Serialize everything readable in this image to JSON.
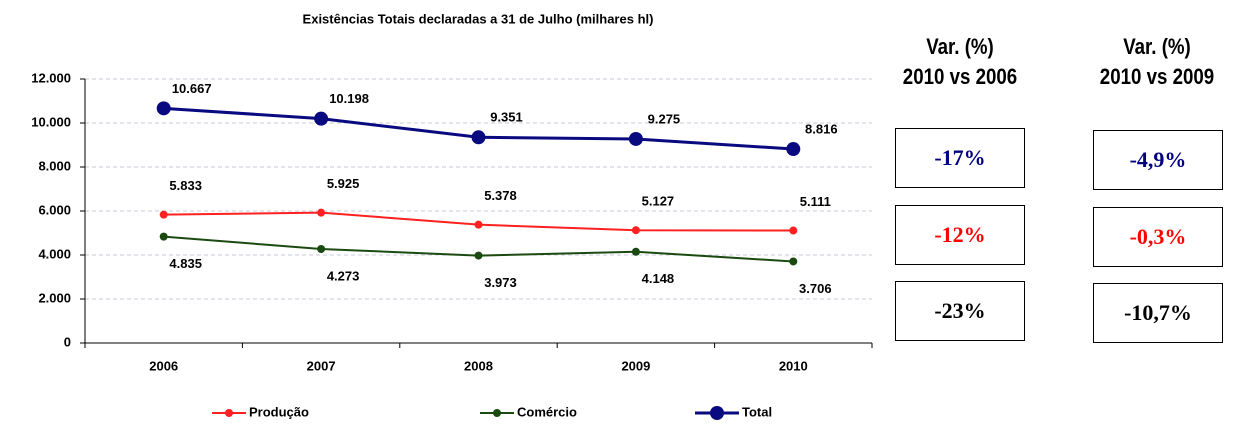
{
  "chart_data": {
    "type": "line",
    "title": "Existências Totais declaradas a 31 de Julho (milhares hl)",
    "categories": [
      "2006",
      "2007",
      "2008",
      "2009",
      "2010"
    ],
    "series": [
      {
        "name": "Produção",
        "color": "#ff2020",
        "values": [
          5833,
          5925,
          5378,
          5127,
          5111
        ],
        "value_labels": [
          "5.833",
          "5.925",
          "5.378",
          "5.127",
          "5.111"
        ]
      },
      {
        "name": "Comércio",
        "color": "#1a4a10",
        "values": [
          4835,
          4273,
          3973,
          4148,
          3706
        ],
        "value_labels": [
          "4.835",
          "4.273",
          "3.973",
          "4.148",
          "3.706"
        ]
      },
      {
        "name": "Total",
        "color": "#0a0a80",
        "values": [
          10667,
          10198,
          9351,
          9275,
          8816
        ],
        "value_labels": [
          "10.667",
          "10.198",
          "9.351",
          "9.275",
          "8.816"
        ]
      }
    ],
    "ylim": [
      0,
      12000
    ],
    "yticks": [
      0,
      {
        "value": 2000,
        "label": "2.000"
      },
      {
        "value": 4000,
        "label": "4.000"
      },
      {
        "value": 6000,
        "label": "6.000"
      },
      {
        "value": 8000,
        "label": "8.000"
      },
      {
        "value": 10000,
        "label": "10.000"
      },
      {
        "value": 12000,
        "label": "12.000"
      }
    ],
    "grid": true,
    "legend": "bottom"
  },
  "variations": [
    {
      "header": [
        "Var. (%)",
        "2010 vs 2006"
      ],
      "values": [
        "-17%",
        "-12%",
        "-23%"
      ]
    },
    {
      "header": [
        "Var. (%)",
        "2010 vs 2009"
      ],
      "values": [
        "-4,9%",
        "-0,3%",
        "-10,7%"
      ]
    }
  ]
}
